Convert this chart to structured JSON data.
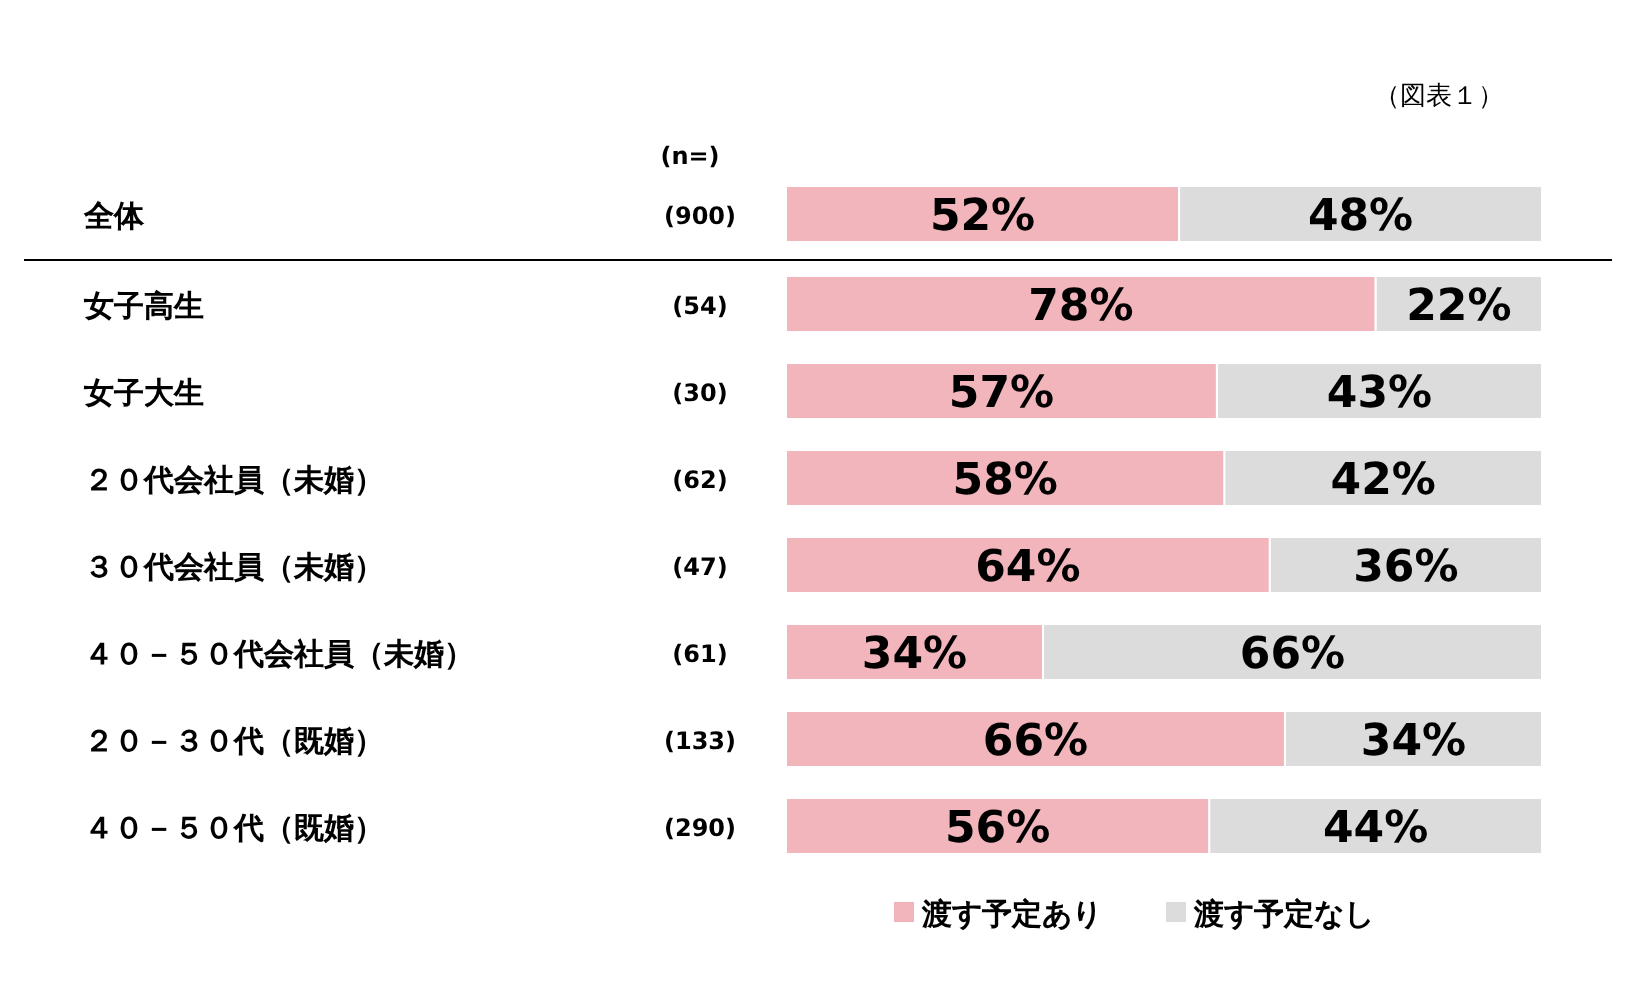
{
  "chart_data": {
    "type": "bar",
    "orientation": "horizontal",
    "stacked": true,
    "legend": "bottom",
    "categories": [
      "全体",
      "女子高生",
      "女子大生",
      "２０代会社員（未婚）",
      "３０代会社員（未婚）",
      "４０－５０代会社員（未婚）",
      "２０－３０代（既婚）",
      "４０－５０代（既婚）"
    ],
    "series": [
      {
        "name": "渡す予定あり",
        "color": "#f2b5bb",
        "values": [
          52,
          78,
          57,
          58,
          64,
          34,
          66,
          56
        ],
        "value_labels": [
          "52%",
          "78%",
          "57%",
          "58%",
          "64%",
          "34%",
          "66%",
          "56%"
        ]
      },
      {
        "name": "渡す予定なし",
        "color": "#dcdcdc",
        "values": [
          48,
          22,
          43,
          42,
          36,
          66,
          34,
          44
        ],
        "value_labels": [
          "48%",
          "22%",
          "43%",
          "42%",
          "36%",
          "66%",
          "34%",
          "44%"
        ]
      }
    ],
    "annotations": [
      "（図表１）",
      "(n=)",
      "(900)",
      "(54)",
      "(30)",
      "(62)",
      "(47)",
      "(61)",
      "(133)",
      "(290)"
    ]
  }
}
